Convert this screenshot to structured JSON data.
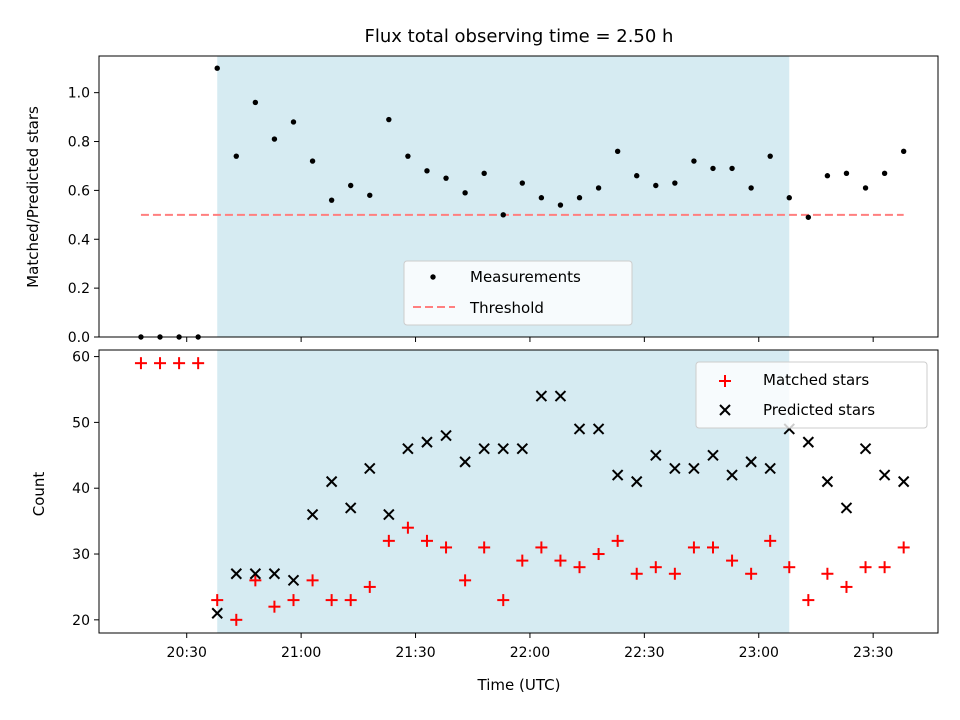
{
  "chart_data": [
    {
      "type": "scatter",
      "title": "Flux total observing time = 2.50 h",
      "xlabel": "",
      "ylabel": "Matched/Predicted stars",
      "ylim": [
        0,
        1.15
      ],
      "yticks": [
        0.0,
        0.2,
        0.4,
        0.6,
        0.8,
        1.0
      ],
      "ytick_labels": [
        "0.0",
        "0.2",
        "0.4",
        "0.6",
        "0.8",
        "1.0"
      ],
      "xlim": [
        "20:07",
        "23:47"
      ],
      "x_ticks_shown": false,
      "shaded_span": [
        "20:38",
        "23:08"
      ],
      "shade_color": "#add8e6",
      "threshold": {
        "name": "Threshold",
        "value": 0.5,
        "x_range": [
          "20:18",
          "23:38"
        ],
        "color": "#ff7f7f"
      },
      "series": [
        {
          "name": "Measurements",
          "color": "#000000",
          "points": [
            [
              "20:18",
              0.0
            ],
            [
              "20:23",
              0.0
            ],
            [
              "20:28",
              0.0
            ],
            [
              "20:33",
              0.0
            ],
            [
              "20:38",
              1.1
            ],
            [
              "20:43",
              0.74
            ],
            [
              "20:48",
              0.96
            ],
            [
              "20:53",
              0.81
            ],
            [
              "20:58",
              0.88
            ],
            [
              "21:03",
              0.72
            ],
            [
              "21:08",
              0.56
            ],
            [
              "21:13",
              0.62
            ],
            [
              "21:18",
              0.58
            ],
            [
              "21:23",
              0.89
            ],
            [
              "21:28",
              0.74
            ],
            [
              "21:33",
              0.68
            ],
            [
              "21:38",
              0.65
            ],
            [
              "21:43",
              0.59
            ],
            [
              "21:48",
              0.67
            ],
            [
              "21:53",
              0.5
            ],
            [
              "21:58",
              0.63
            ],
            [
              "22:03",
              0.57
            ],
            [
              "22:08",
              0.54
            ],
            [
              "22:13",
              0.57
            ],
            [
              "22:18",
              0.61
            ],
            [
              "22:23",
              0.76
            ],
            [
              "22:28",
              0.66
            ],
            [
              "22:33",
              0.62
            ],
            [
              "22:38",
              0.63
            ],
            [
              "22:43",
              0.72
            ],
            [
              "22:48",
              0.69
            ],
            [
              "22:53",
              0.69
            ],
            [
              "22:58",
              0.61
            ],
            [
              "23:03",
              0.74
            ],
            [
              "23:08",
              0.57
            ],
            [
              "23:13",
              0.49
            ],
            [
              "23:18",
              0.66
            ],
            [
              "23:23",
              0.67
            ],
            [
              "23:28",
              0.61
            ],
            [
              "23:33",
              0.67
            ],
            [
              "23:38",
              0.76
            ]
          ]
        }
      ],
      "legend": {
        "position": "lower-center",
        "entries": [
          "Measurements",
          "Threshold"
        ]
      },
      "grid": false
    },
    {
      "type": "scatter",
      "title": "",
      "xlabel": "Time (UTC)",
      "ylabel": "Count",
      "ylim": [
        18,
        61
      ],
      "yticks": [
        20,
        30,
        40,
        50,
        60
      ],
      "ytick_labels": [
        "20",
        "30",
        "40",
        "50",
        "60"
      ],
      "xlim": [
        "20:07",
        "23:47"
      ],
      "xticks": [
        "20:30",
        "21:00",
        "21:30",
        "22:00",
        "22:30",
        "23:00",
        "23:30"
      ],
      "shaded_span": [
        "20:38",
        "23:08"
      ],
      "shade_color": "#add8e6",
      "series": [
        {
          "name": "Matched stars",
          "marker": "plus",
          "color": "#ff0000",
          "points": [
            [
              "20:18",
              59
            ],
            [
              "20:23",
              59
            ],
            [
              "20:28",
              59
            ],
            [
              "20:33",
              59
            ],
            [
              "20:38",
              23
            ],
            [
              "20:43",
              20
            ],
            [
              "20:48",
              26
            ],
            [
              "20:53",
              22
            ],
            [
              "20:58",
              23
            ],
            [
              "21:03",
              26
            ],
            [
              "21:08",
              23
            ],
            [
              "21:13",
              23
            ],
            [
              "21:18",
              25
            ],
            [
              "21:23",
              32
            ],
            [
              "21:28",
              34
            ],
            [
              "21:33",
              32
            ],
            [
              "21:38",
              31
            ],
            [
              "21:43",
              26
            ],
            [
              "21:48",
              31
            ],
            [
              "21:53",
              23
            ],
            [
              "21:58",
              29
            ],
            [
              "22:03",
              31
            ],
            [
              "22:08",
              29
            ],
            [
              "22:13",
              28
            ],
            [
              "22:18",
              30
            ],
            [
              "22:23",
              32
            ],
            [
              "22:28",
              27
            ],
            [
              "22:33",
              28
            ],
            [
              "22:38",
              27
            ],
            [
              "22:43",
              31
            ],
            [
              "22:48",
              31
            ],
            [
              "22:53",
              29
            ],
            [
              "22:58",
              27
            ],
            [
              "23:03",
              32
            ],
            [
              "23:08",
              28
            ],
            [
              "23:13",
              23
            ],
            [
              "23:18",
              27
            ],
            [
              "23:23",
              25
            ],
            [
              "23:28",
              28
            ],
            [
              "23:33",
              28
            ],
            [
              "23:38",
              31
            ]
          ]
        },
        {
          "name": "Predicted stars",
          "marker": "x",
          "color": "#000000",
          "points": [
            [
              "20:38",
              21
            ],
            [
              "20:43",
              27
            ],
            [
              "20:48",
              27
            ],
            [
              "20:53",
              27
            ],
            [
              "20:58",
              26
            ],
            [
              "21:03",
              36
            ],
            [
              "21:08",
              41
            ],
            [
              "21:13",
              37
            ],
            [
              "21:18",
              43
            ],
            [
              "21:23",
              36
            ],
            [
              "21:28",
              46
            ],
            [
              "21:33",
              47
            ],
            [
              "21:38",
              48
            ],
            [
              "21:43",
              44
            ],
            [
              "21:48",
              46
            ],
            [
              "21:53",
              46
            ],
            [
              "21:58",
              46
            ],
            [
              "22:03",
              54
            ],
            [
              "22:08",
              54
            ],
            [
              "22:13",
              49
            ],
            [
              "22:18",
              49
            ],
            [
              "22:23",
              42
            ],
            [
              "22:28",
              41
            ],
            [
              "22:33",
              45
            ],
            [
              "22:38",
              43
            ],
            [
              "22:43",
              43
            ],
            [
              "22:48",
              45
            ],
            [
              "22:53",
              42
            ],
            [
              "22:58",
              44
            ],
            [
              "23:03",
              43
            ],
            [
              "23:08",
              49
            ],
            [
              "23:13",
              47
            ],
            [
              "23:18",
              41
            ],
            [
              "23:23",
              37
            ],
            [
              "23:28",
              46
            ],
            [
              "23:33",
              42
            ],
            [
              "23:38",
              41
            ]
          ]
        }
      ],
      "legend": {
        "position": "top-right",
        "entries": [
          "Matched stars",
          "Predicted stars"
        ]
      },
      "grid": false
    }
  ]
}
